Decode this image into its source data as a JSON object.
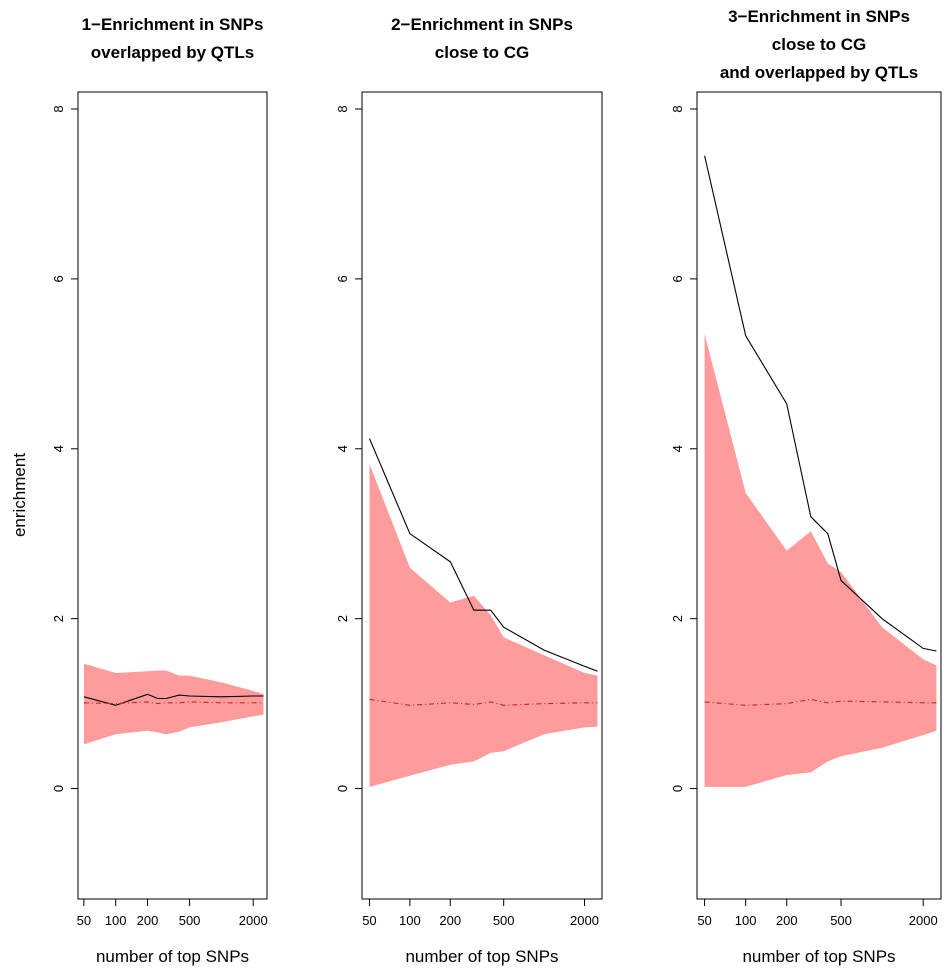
{
  "colors": {
    "band": "#ff9b9b",
    "enrichment_line": "#000000",
    "null_line": "#c0282a",
    "axis": "#000000"
  },
  "y_axis_label": "enrichment",
  "chart_data": [
    {
      "type": "line",
      "title_lines": [
        "1−Enrichment in SNPs",
        "overlapped by QTLs"
      ],
      "xlabel": "number of top SNPs",
      "ylabel": "enrichment",
      "xscale": "log",
      "xlim": [
        44,
        2700
      ],
      "ylim": [
        -1.3,
        8.2
      ],
      "x_ticks": [
        50,
        100,
        200,
        500,
        2000
      ],
      "y_ticks": [
        0,
        2,
        4,
        6,
        8
      ],
      "grid": false,
      "x": [
        50,
        100,
        200,
        250,
        300,
        400,
        500,
        1000,
        2000,
        2500
      ],
      "band_upper": [
        1.47,
        1.36,
        1.38,
        1.39,
        1.39,
        1.33,
        1.33,
        1.25,
        1.15,
        1.11
      ],
      "band_lower": [
        0.52,
        0.64,
        0.68,
        0.66,
        0.64,
        0.67,
        0.72,
        0.78,
        0.85,
        0.87
      ],
      "series": [
        {
          "name": "",
          "style": "solid",
          "values": [
            1.08,
            0.98,
            1.11,
            1.06,
            1.06,
            1.1,
            1.09,
            1.08,
            1.09,
            1.09
          ]
        },
        {
          "name": "",
          "style": "dashed",
          "values": [
            1.01,
            1.0,
            1.02,
            1.0,
            1.01,
            1.01,
            1.02,
            1.01,
            1.01,
            1.01
          ]
        }
      ]
    },
    {
      "type": "line",
      "title_lines": [
        "2−Enrichment in SNPs",
        "close to CG"
      ],
      "xlabel": "number of top SNPs",
      "ylabel": "",
      "xscale": "log",
      "xlim": [
        44,
        2700
      ],
      "ylim": [
        -1.3,
        8.2
      ],
      "x_ticks": [
        50,
        100,
        200,
        500,
        2000
      ],
      "y_ticks": [
        0,
        2,
        4,
        6,
        8
      ],
      "grid": false,
      "x": [
        50,
        100,
        200,
        300,
        400,
        500,
        1000,
        2000,
        2500
      ],
      "band_upper": [
        3.82,
        2.6,
        2.19,
        2.27,
        2.04,
        1.78,
        1.57,
        1.36,
        1.33
      ],
      "band_lower": [
        0.02,
        0.15,
        0.28,
        0.32,
        0.42,
        0.44,
        0.64,
        0.72,
        0.73
      ],
      "series": [
        {
          "name": "",
          "style": "solid",
          "values": [
            4.12,
            3.0,
            2.67,
            2.1,
            2.1,
            1.9,
            1.63,
            1.44,
            1.38
          ]
        },
        {
          "name": "",
          "style": "dashed",
          "values": [
            1.05,
            0.98,
            1.01,
            0.99,
            1.02,
            0.98,
            1.0,
            1.01,
            1.01
          ]
        }
      ]
    },
    {
      "type": "line",
      "title_lines": [
        "3−Enrichment in SNPs",
        "close to CG",
        "and overlapped by QTLs"
      ],
      "xlabel": "number of top SNPs",
      "ylabel": "",
      "xscale": "log",
      "xlim": [
        44,
        2700
      ],
      "ylim": [
        -1.3,
        8.2
      ],
      "x_ticks": [
        50,
        100,
        200,
        500,
        2000
      ],
      "y_ticks": [
        0,
        2,
        4,
        6,
        8
      ],
      "grid": false,
      "x": [
        50,
        100,
        200,
        300,
        400,
        500,
        1000,
        2000,
        2500
      ],
      "band_upper": [
        5.35,
        3.48,
        2.8,
        3.03,
        2.65,
        2.55,
        1.9,
        1.52,
        1.45
      ],
      "band_lower": [
        0.02,
        0.02,
        0.16,
        0.19,
        0.32,
        0.38,
        0.48,
        0.63,
        0.68
      ],
      "series": [
        {
          "name": "",
          "style": "solid",
          "values": [
            7.45,
            5.33,
            4.53,
            3.2,
            3.0,
            2.45,
            2.0,
            1.65,
            1.62
          ]
        },
        {
          "name": "",
          "style": "dashed",
          "values": [
            1.02,
            0.98,
            1.0,
            1.05,
            1.01,
            1.03,
            1.02,
            1.01,
            1.01
          ]
        }
      ]
    }
  ]
}
